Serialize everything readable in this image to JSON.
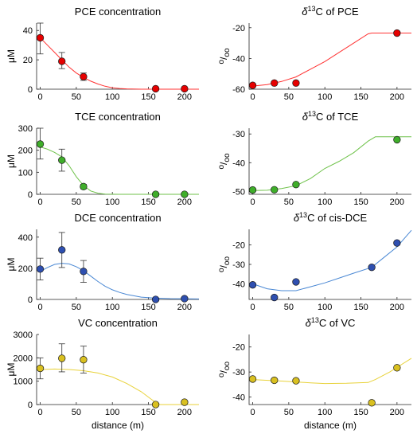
{
  "chart_data": [
    {
      "type": "scatter",
      "title": "PCE concentration",
      "ylabel": "μM",
      "xlabel": "",
      "xlim": [
        -5,
        220
      ],
      "ylim": [
        0,
        45
      ],
      "xticks": [
        0,
        50,
        100,
        150,
        200
      ],
      "yticks": [
        0,
        20,
        40
      ],
      "color": "#e60000",
      "line_color": "#ff3333",
      "points": [
        {
          "x": 0,
          "y": 35,
          "err_low": 24,
          "err_high": 45
        },
        {
          "x": 30,
          "y": 19,
          "err_low": 14,
          "err_high": 25
        },
        {
          "x": 60,
          "y": 8.5,
          "err_low": 6,
          "err_high": 11
        },
        {
          "x": 160,
          "y": 0.3
        },
        {
          "x": 200,
          "y": 0.3
        }
      ],
      "curve": [
        [
          0,
          35
        ],
        [
          10,
          30
        ],
        [
          20,
          25
        ],
        [
          30,
          20
        ],
        [
          40,
          15
        ],
        [
          50,
          11
        ],
        [
          60,
          8
        ],
        [
          70,
          5.5
        ],
        [
          80,
          3.5
        ],
        [
          90,
          2
        ],
        [
          100,
          1
        ],
        [
          110,
          0.5
        ],
        [
          120,
          0.2
        ],
        [
          140,
          0
        ],
        [
          220,
          0
        ]
      ]
    },
    {
      "type": "scatter",
      "title": "δ13C of PCE",
      "title_base": "δ",
      "title_sup": "13",
      "title_rest": "C of PCE",
      "ylabel": "o/oo",
      "ylabel_top": "o",
      "ylabel_bottom": "oo",
      "xlabel": "",
      "xlim": [
        -5,
        220
      ],
      "ylim": [
        -60,
        -17
      ],
      "xticks": [
        0,
        50,
        100,
        150,
        200
      ],
      "yticks": [
        -60,
        -40,
        -20
      ],
      "color": "#e60000",
      "line_color": "#ff3333",
      "points": [
        {
          "x": 0,
          "y": -57.5
        },
        {
          "x": 30,
          "y": -56
        },
        {
          "x": 60,
          "y": -56
        },
        {
          "x": 200,
          "y": -23.5
        }
      ],
      "curve": [
        [
          0,
          -58
        ],
        [
          20,
          -57
        ],
        [
          40,
          -55
        ],
        [
          60,
          -52
        ],
        [
          80,
          -47
        ],
        [
          100,
          -42
        ],
        [
          120,
          -36
        ],
        [
          140,
          -30
        ],
        [
          160,
          -24
        ],
        [
          165,
          -23.5
        ],
        [
          220,
          -23.5
        ]
      ]
    },
    {
      "type": "scatter",
      "title": "TCE concentration",
      "ylabel": "μM",
      "xlabel": "",
      "xlim": [
        -5,
        220
      ],
      "ylim": [
        0,
        300
      ],
      "xticks": [
        0,
        50,
        100,
        150,
        200
      ],
      "yticks": [
        0,
        100,
        200,
        300
      ],
      "color": "#3fae2a",
      "line_color": "#6fc24a",
      "points": [
        {
          "x": 0,
          "y": 228,
          "err_low": 160,
          "err_high": 300
        },
        {
          "x": 30,
          "y": 155,
          "err_low": 105,
          "err_high": 205
        },
        {
          "x": 60,
          "y": 35,
          "err_low": 25,
          "err_high": 45
        },
        {
          "x": 160,
          "y": 0
        },
        {
          "x": 200,
          "y": 0
        }
      ],
      "curve": [
        [
          0,
          215
        ],
        [
          10,
          205
        ],
        [
          20,
          190
        ],
        [
          30,
          170
        ],
        [
          40,
          130
        ],
        [
          50,
          80
        ],
        [
          60,
          40
        ],
        [
          70,
          15
        ],
        [
          80,
          5
        ],
        [
          90,
          1
        ],
        [
          110,
          0
        ],
        [
          220,
          0
        ]
      ]
    },
    {
      "type": "scatter",
      "title": "δ13C of TCE",
      "title_base": "δ",
      "title_sup": "13",
      "title_rest": "C of TCE",
      "ylabel": "o/oo",
      "ylabel_top": "o",
      "ylabel_bottom": "oo",
      "xlabel": "",
      "xlim": [
        -5,
        220
      ],
      "ylim": [
        -51,
        -28
      ],
      "xticks": [
        0,
        50,
        100,
        150,
        200
      ],
      "yticks": [
        -50,
        -40,
        -30
      ],
      "color": "#3fae2a",
      "line_color": "#6fc24a",
      "points": [
        {
          "x": 0,
          "y": -49.5
        },
        {
          "x": 30,
          "y": -49.4
        },
        {
          "x": 60,
          "y": -47.6
        },
        {
          "x": 200,
          "y": -32
        }
      ],
      "curve": [
        [
          0,
          -49.7
        ],
        [
          20,
          -49.6
        ],
        [
          40,
          -49
        ],
        [
          60,
          -48
        ],
        [
          80,
          -45.5
        ],
        [
          100,
          -42
        ],
        [
          120,
          -39.5
        ],
        [
          140,
          -36.5
        ],
        [
          160,
          -32.5
        ],
        [
          170,
          -31
        ],
        [
          220,
          -31
        ]
      ]
    },
    {
      "type": "scatter",
      "title": "DCE concentration",
      "ylabel": "μM",
      "xlabel": "",
      "xlim": [
        -5,
        220
      ],
      "ylim": [
        0,
        450
      ],
      "xticks": [
        0,
        50,
        100,
        150,
        200
      ],
      "yticks": [
        0,
        200,
        400
      ],
      "color": "#2e4fb0",
      "line_color": "#4a88d4",
      "points": [
        {
          "x": 0,
          "y": 195,
          "err_low": 125,
          "err_high": 265
        },
        {
          "x": 30,
          "y": 318,
          "err_low": 205,
          "err_high": 430
        },
        {
          "x": 60,
          "y": 180,
          "err_low": 110,
          "err_high": 250
        },
        {
          "x": 160,
          "y": 0
        },
        {
          "x": 200,
          "y": 5
        }
      ],
      "curve": [
        [
          0,
          180
        ],
        [
          10,
          205
        ],
        [
          20,
          225
        ],
        [
          30,
          232
        ],
        [
          40,
          228
        ],
        [
          50,
          210
        ],
        [
          60,
          185
        ],
        [
          70,
          150
        ],
        [
          80,
          115
        ],
        [
          90,
          85
        ],
        [
          100,
          62
        ],
        [
          110,
          45
        ],
        [
          120,
          32
        ],
        [
          140,
          15
        ],
        [
          160,
          8
        ],
        [
          180,
          5
        ],
        [
          220,
          3
        ]
      ]
    },
    {
      "type": "scatter",
      "title": "δ13C of cis-DCE",
      "title_base": "δ",
      "title_sup": "13",
      "title_rest": "C of cis-DCE",
      "ylabel": "o/oo",
      "ylabel_top": "o",
      "ylabel_bottom": "oo",
      "xlabel": "",
      "xlim": [
        -5,
        220
      ],
      "ylim": [
        -48,
        -12
      ],
      "xticks": [
        0,
        50,
        100,
        150,
        200
      ],
      "yticks": [
        -40,
        -30,
        -20
      ],
      "color": "#2e4fb0",
      "line_color": "#4a88d4",
      "points": [
        {
          "x": 0,
          "y": -40.5
        },
        {
          "x": 30,
          "y": -47
        },
        {
          "x": 60,
          "y": -39
        },
        {
          "x": 165,
          "y": -31.5
        },
        {
          "x": 200,
          "y": -19
        }
      ],
      "curve": [
        [
          0,
          -40
        ],
        [
          20,
          -42.5
        ],
        [
          40,
          -43.5
        ],
        [
          60,
          -43.5
        ],
        [
          80,
          -41.5
        ],
        [
          100,
          -39.5
        ],
        [
          120,
          -37
        ],
        [
          140,
          -34.5
        ],
        [
          165,
          -31.5
        ],
        [
          180,
          -27
        ],
        [
          200,
          -21
        ],
        [
          220,
          -12.5
        ]
      ]
    },
    {
      "type": "scatter",
      "title": "VC concentration",
      "ylabel": "μM",
      "xlabel": "distance (m)",
      "xlim": [
        -5,
        220
      ],
      "ylim": [
        0,
        3000
      ],
      "xticks": [
        0,
        50,
        100,
        150,
        200
      ],
      "yticks": [
        0,
        1000,
        2000,
        3000
      ],
      "color": "#d9c020",
      "line_color": "#e8d23a",
      "points": [
        {
          "x": 0,
          "y": 1550,
          "err_low": 1100,
          "err_high": 2000
        },
        {
          "x": 30,
          "y": 1980,
          "err_low": 1400,
          "err_high": 2600
        },
        {
          "x": 60,
          "y": 1920,
          "err_low": 1350,
          "err_high": 2500
        },
        {
          "x": 160,
          "y": 0
        },
        {
          "x": 200,
          "y": 100
        }
      ],
      "curve": [
        [
          0,
          1500
        ],
        [
          20,
          1520
        ],
        [
          40,
          1500
        ],
        [
          60,
          1450
        ],
        [
          80,
          1350
        ],
        [
          100,
          1180
        ],
        [
          120,
          900
        ],
        [
          140,
          550
        ],
        [
          155,
          200
        ],
        [
          165,
          0
        ],
        [
          220,
          0
        ]
      ]
    },
    {
      "type": "scatter",
      "title": "δ13C of VC",
      "title_base": "δ",
      "title_sup": "13",
      "title_rest": "C of VC",
      "ylabel": "o/oo",
      "ylabel_top": "o",
      "ylabel_bottom": "oo",
      "xlabel": "distance (m)",
      "xlim": [
        -5,
        220
      ],
      "ylim": [
        -43,
        -15
      ],
      "xticks": [
        0,
        50,
        100,
        150,
        200
      ],
      "yticks": [
        -40,
        -30,
        -20
      ],
      "color": "#d9c020",
      "line_color": "#e8d23a",
      "points": [
        {
          "x": 0,
          "y": -32.8
        },
        {
          "x": 30,
          "y": -33.3
        },
        {
          "x": 60,
          "y": -33.5
        },
        {
          "x": 165,
          "y": -42.3
        },
        {
          "x": 200,
          "y": -28.3
        }
      ],
      "curve": [
        [
          0,
          -33
        ],
        [
          40,
          -33.6
        ],
        [
          80,
          -34.3
        ],
        [
          100,
          -34.6
        ],
        [
          130,
          -34.5
        ],
        [
          160,
          -34.2
        ],
        [
          170,
          -33
        ],
        [
          190,
          -30
        ],
        [
          220,
          -24.5
        ]
      ]
    }
  ]
}
